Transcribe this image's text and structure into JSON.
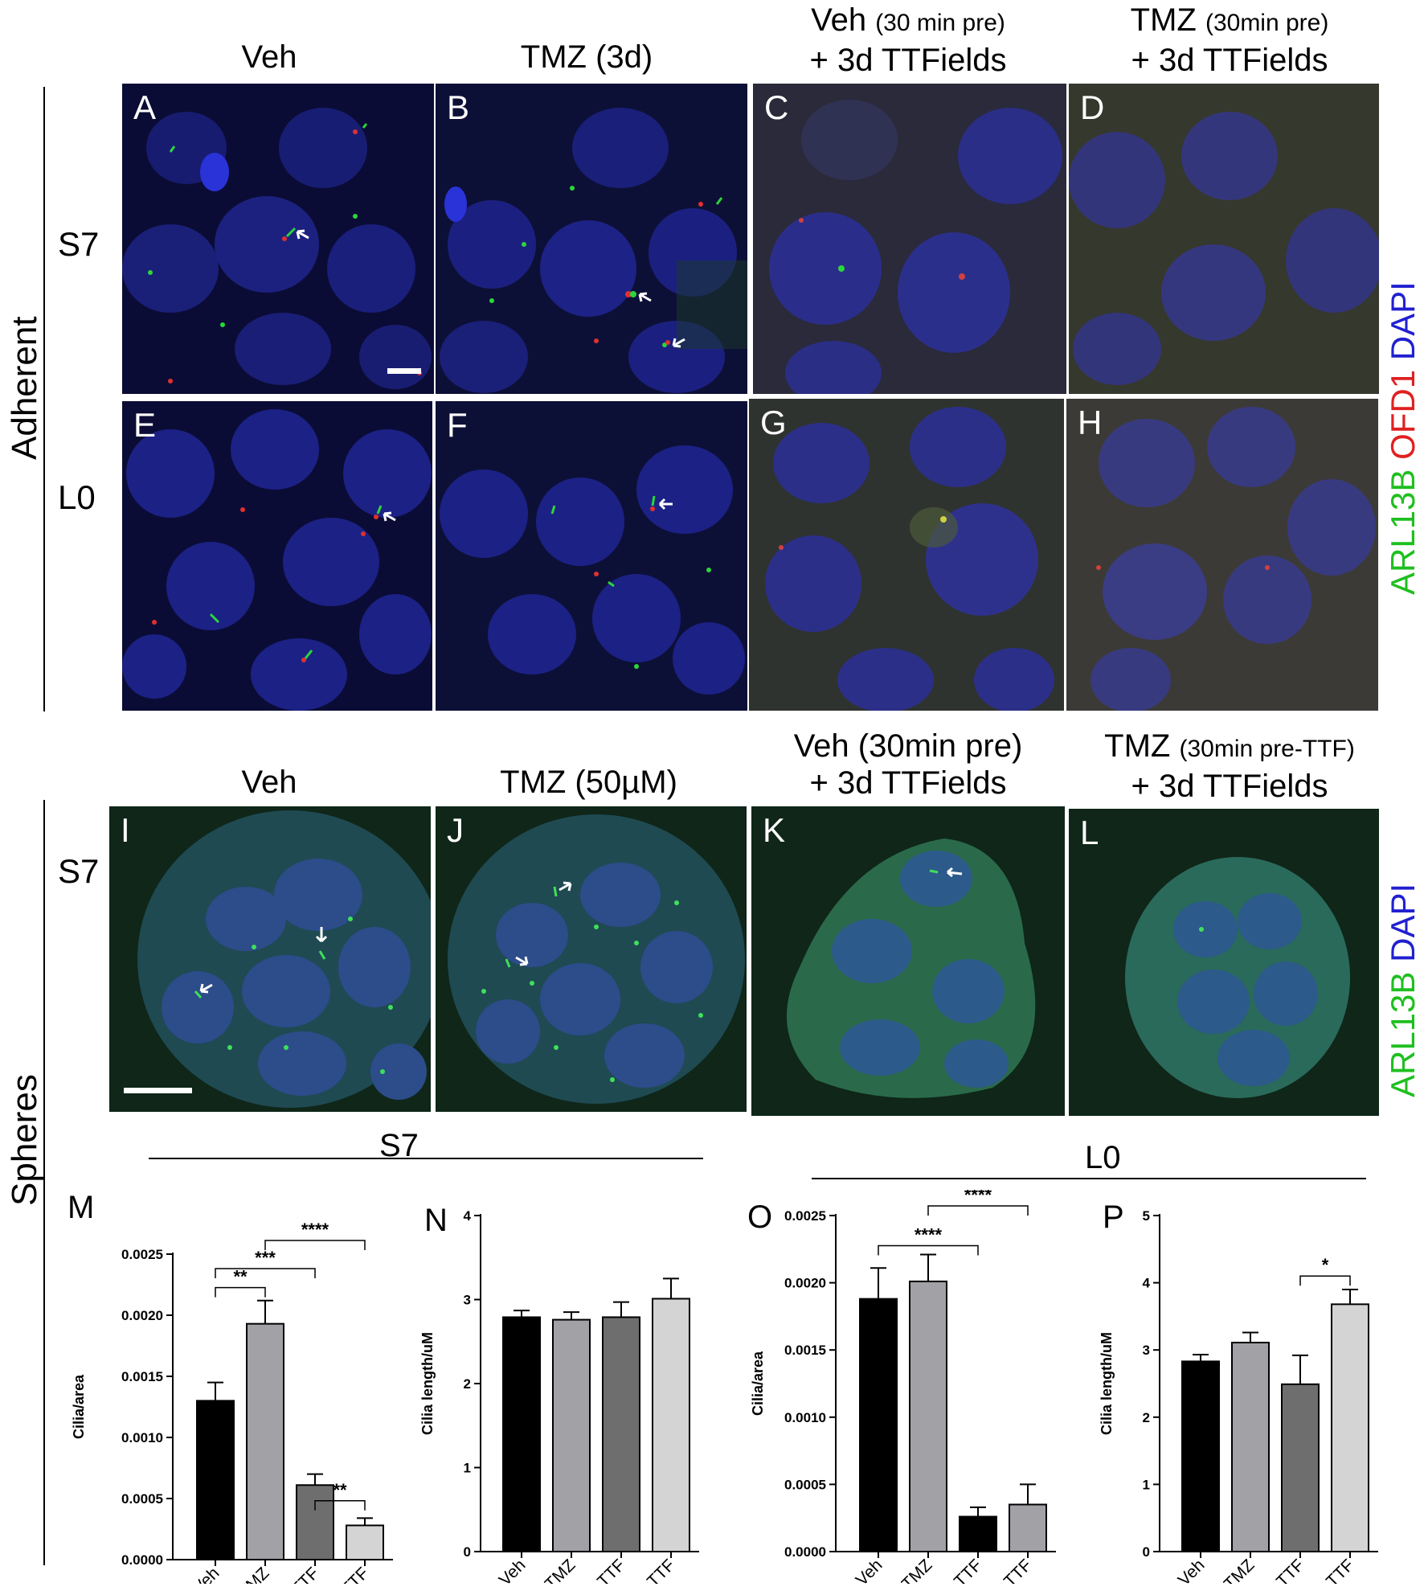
{
  "adherent": {
    "section_label": "Adherent",
    "headers": {
      "col1": "Veh",
      "col2": "TMZ (3d)",
      "col3_main": "Veh",
      "col3_small": "(30 min pre)",
      "col3_line2": "+ 3d TTFields",
      "col4_main": "TMZ",
      "col4_small": "(30min pre)",
      "col4_line2": "+ 3d TTFields"
    },
    "rows": [
      "S7",
      "L0"
    ],
    "panels": [
      "A",
      "B",
      "C",
      "D",
      "E",
      "F",
      "G",
      "H"
    ],
    "channel_legend": {
      "ch1": "ARL13B",
      "ch2": "OFD1",
      "ch3": "DAPI",
      "color1": "#1fbf1f",
      "color2": "#e02020",
      "color3": "#2020d0"
    }
  },
  "spheres": {
    "section_label": "Spheres",
    "headers": {
      "col1": "Veh",
      "col2": "TMZ (50µM)",
      "col3_line1": "Veh (30min pre)",
      "col3_line2": "+ 3d TTFields",
      "col4_main": "TMZ",
      "col4_small": "(30min pre-TTF)",
      "col4_line2": "+ 3d TTFields"
    },
    "row": "S7",
    "panels": [
      "I",
      "J",
      "K",
      "L"
    ],
    "channel_legend": {
      "ch1": "ARL13B",
      "ch2": "DAPI",
      "color1": "#1fbf1f",
      "color2": "#2020d0"
    }
  },
  "groups": {
    "left": "S7",
    "right": "L0"
  },
  "chart_data": [
    {
      "panel": "M",
      "type": "bar",
      "categories": [
        "Veh",
        "TMZ",
        "Veh+TTF",
        "TMZ+TTF"
      ],
      "values": [
        0.0013,
        0.00193,
        0.00061,
        0.00028
      ],
      "errors": [
        0.00015,
        0.00019,
        9e-05,
        6e-05
      ],
      "ylabel": "Cilia/area",
      "ylim": [
        0,
        0.0025
      ],
      "yticks": [
        "0.0000",
        "0.0005",
        "0.0010",
        "0.0015",
        "0.0020",
        "0.0025"
      ],
      "colors": [
        "#000000",
        "#a1a1a6",
        "#6e6e6e",
        "#d4d4d4"
      ],
      "significance": [
        {
          "from": 0,
          "to": 1,
          "label": "**"
        },
        {
          "from": 0,
          "to": 2,
          "label": "***"
        },
        {
          "from": 1,
          "to": 3,
          "label": "****"
        },
        {
          "from": 2,
          "to": 3,
          "label": "**"
        }
      ]
    },
    {
      "panel": "N",
      "type": "bar",
      "categories": [
        "Veh",
        "TMZ",
        "Veh+TTF",
        "TMZ+TTF"
      ],
      "values": [
        2.79,
        2.76,
        2.79,
        3.01
      ],
      "errors": [
        0.08,
        0.09,
        0.18,
        0.24
      ],
      "ylabel": "Cilia length/uM",
      "ylim": [
        0,
        4
      ],
      "yticks": [
        "0",
        "1",
        "2",
        "3",
        "4"
      ],
      "colors": [
        "#000000",
        "#a1a1a6",
        "#6e6e6e",
        "#d4d4d4"
      ],
      "significance": []
    },
    {
      "panel": "O",
      "type": "bar",
      "categories": [
        "Veh",
        "TMZ",
        "Veh+TTF",
        "TMZ+TTF"
      ],
      "values": [
        0.00188,
        0.00201,
        0.00026,
        0.00035
      ],
      "errors": [
        0.00023,
        0.0002,
        7e-05,
        0.00015
      ],
      "ylabel": "Cilia/area",
      "ylim": [
        0,
        0.0025
      ],
      "yticks": [
        "0.0000",
        "0.0005",
        "0.0010",
        "0.0015",
        "0.0020",
        "0.0025"
      ],
      "colors": [
        "#000000",
        "#a1a1a6",
        "#000000",
        "#a1a1a6"
      ],
      "significance": [
        {
          "from": 0,
          "to": 2,
          "label": "****"
        },
        {
          "from": 1,
          "to": 3,
          "label": "****"
        }
      ]
    },
    {
      "panel": "P",
      "type": "bar",
      "categories": [
        "Veh",
        "TMZ",
        "Veh+TTF",
        "TMZ+TTF"
      ],
      "values": [
        2.83,
        3.11,
        2.49,
        3.68
      ],
      "errors": [
        0.1,
        0.15,
        0.43,
        0.22
      ],
      "ylabel": "Cilia length/uM",
      "ylim": [
        0,
        5
      ],
      "yticks": [
        "0",
        "1",
        "2",
        "3",
        "4",
        "5"
      ],
      "colors": [
        "#000000",
        "#a1a1a6",
        "#6e6e6e",
        "#d4d4d4"
      ],
      "significance": [
        {
          "from": 2,
          "to": 3,
          "label": "*"
        }
      ]
    }
  ]
}
